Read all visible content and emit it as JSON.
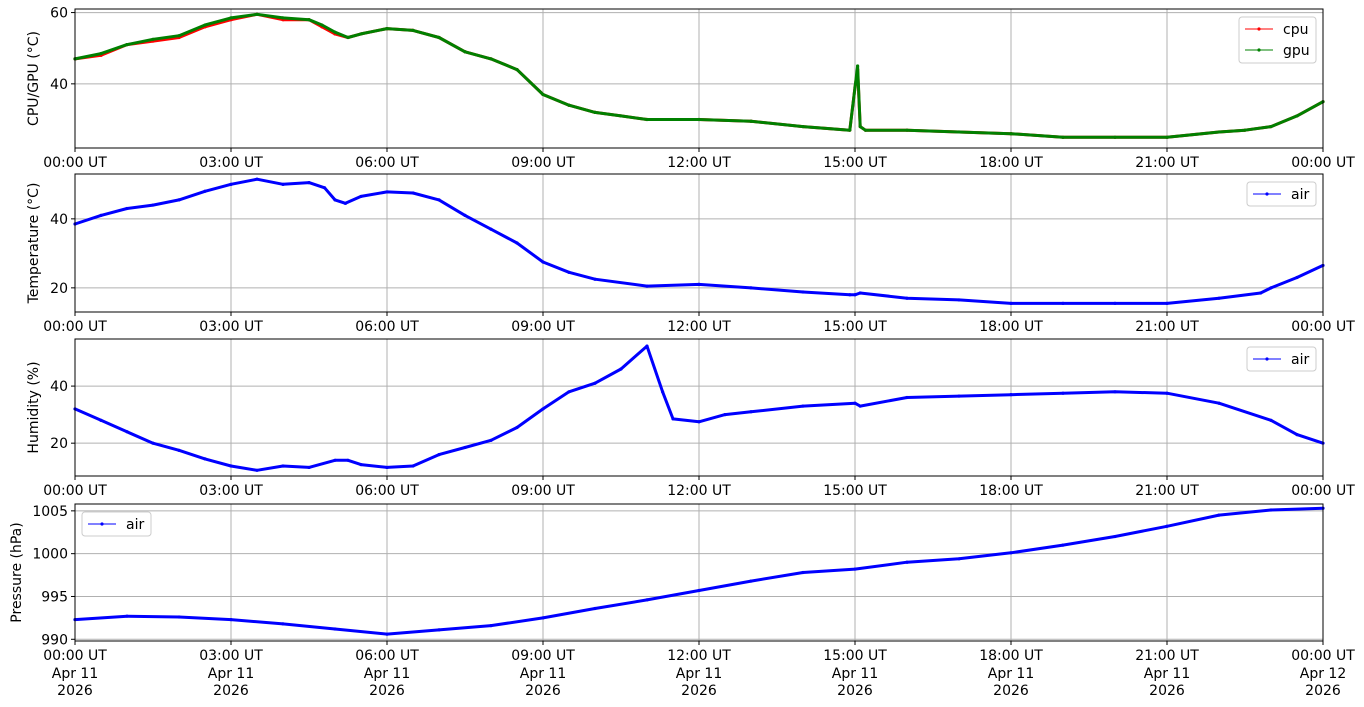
{
  "colors": {
    "cpu": "#ff0000",
    "gpu": "#008000",
    "air": "#0000ff",
    "grid": "#b0b0b0"
  },
  "x_ticks": [
    "00:00 UT",
    "03:00 UT",
    "06:00 UT",
    "09:00 UT",
    "12:00 UT",
    "15:00 UT",
    "18:00 UT",
    "21:00 UT",
    "00:00 UT"
  ],
  "x_tick_dates": [
    "Apr 11",
    "Apr 11",
    "Apr 11",
    "Apr 11",
    "Apr 11",
    "Apr 11",
    "Apr 11",
    "Apr 11",
    "Apr 12"
  ],
  "x_tick_years": [
    "2026",
    "2026",
    "2026",
    "2026",
    "2026",
    "2026",
    "2026",
    "2026",
    "2026"
  ],
  "chart_data": [
    {
      "type": "line",
      "xlabel": "",
      "ylabel": "CPU/GPU (°C)",
      "xlim": [
        "2026-04-11 00:00",
        "2026-04-12 00:00"
      ],
      "ylim": [
        22,
        61
      ],
      "yticks": [
        40,
        60
      ],
      "grid": true,
      "legend": "upper right",
      "series": [
        {
          "name": "cpu",
          "x_hours": [
            0,
            0.5,
            1,
            1.5,
            2,
            2.5,
            3,
            3.5,
            4,
            4.5,
            4.75,
            5,
            5.25,
            5.5,
            6,
            6.5,
            7,
            7.5,
            8,
            8.5,
            9,
            9.5,
            10,
            10.5,
            11,
            12,
            13,
            14,
            14.9,
            15,
            15.05,
            15.1,
            15.2,
            16,
            17,
            18,
            19,
            20,
            21,
            22,
            22.5,
            23,
            23.5,
            24
          ],
          "values": [
            47,
            48,
            51,
            52,
            53,
            56,
            58,
            59.5,
            58,
            58,
            56,
            54,
            53,
            54,
            55.5,
            55,
            53,
            49,
            47,
            44,
            37,
            34,
            32,
            31,
            30,
            30,
            29.5,
            28,
            27,
            39,
            44,
            28,
            27,
            27,
            26.5,
            26,
            25,
            25,
            25,
            26.5,
            27,
            28,
            31,
            35
          ]
        },
        {
          "name": "gpu",
          "x_hours": [
            0,
            0.5,
            1,
            1.5,
            2,
            2.5,
            3,
            3.5,
            4,
            4.5,
            4.75,
            5,
            5.25,
            5.5,
            6,
            6.5,
            7,
            7.5,
            8,
            8.5,
            9,
            9.5,
            10,
            10.5,
            11,
            12,
            13,
            14,
            14.9,
            15,
            15.05,
            15.1,
            15.2,
            16,
            17,
            18,
            19,
            20,
            21,
            22,
            22.5,
            23,
            23.5,
            24
          ],
          "values": [
            47,
            48.5,
            51,
            52.5,
            53.5,
            56.5,
            58.5,
            59.5,
            58.5,
            58,
            56.5,
            54.5,
            53,
            54,
            55.5,
            55,
            53,
            49,
            47,
            44,
            37,
            34,
            32,
            31,
            30,
            30,
            29.5,
            28,
            27,
            39,
            45,
            28,
            27,
            27,
            26.5,
            26,
            25,
            25,
            25,
            26.5,
            27,
            28,
            31,
            35
          ]
        }
      ]
    },
    {
      "type": "line",
      "xlabel": "",
      "ylabel": "Temperature (°C)",
      "xlim": [
        "2026-04-11 00:00",
        "2026-04-12 00:00"
      ],
      "ylim": [
        13,
        53
      ],
      "yticks": [
        20,
        40
      ],
      "grid": true,
      "legend": "upper right",
      "series": [
        {
          "name": "air",
          "x_hours": [
            0,
            0.5,
            1,
            1.5,
            2,
            2.5,
            3,
            3.5,
            4,
            4.5,
            4.8,
            5,
            5.2,
            5.5,
            6,
            6.5,
            7,
            7.5,
            8,
            8.5,
            9,
            9.5,
            10,
            11,
            12,
            13,
            14,
            14.9,
            15,
            15.1,
            16,
            17,
            18,
            19,
            20,
            21,
            22,
            22.8,
            23,
            23.5,
            24
          ],
          "values": [
            38.5,
            41,
            43,
            44,
            45.5,
            48,
            50,
            51.5,
            50,
            50.5,
            49,
            45.5,
            44.5,
            46.5,
            47.8,
            47.5,
            45.5,
            41,
            37,
            33,
            27.5,
            24.5,
            22.5,
            20.5,
            21,
            20,
            18.8,
            18,
            18,
            18.5,
            17,
            16.5,
            15.5,
            15.5,
            15.5,
            15.5,
            17,
            18.5,
            20,
            23,
            26.5
          ]
        }
      ]
    },
    {
      "type": "line",
      "xlabel": "",
      "ylabel": "Humidity (%)",
      "xlim": [
        "2026-04-11 00:00",
        "2026-04-12 00:00"
      ],
      "ylim": [
        8.5,
        56.5
      ],
      "yticks": [
        20,
        40
      ],
      "grid": true,
      "legend": "upper right",
      "series": [
        {
          "name": "air",
          "x_hours": [
            0,
            0.5,
            1,
            1.5,
            2,
            2.5,
            3,
            3.5,
            4,
            4.5,
            5,
            5.25,
            5.5,
            6,
            6.5,
            7,
            7.5,
            8,
            8.5,
            9,
            9.5,
            10,
            10.5,
            11,
            11.3,
            11.5,
            12,
            12.5,
            13,
            14,
            15,
            15.1,
            16,
            17,
            18,
            19,
            20,
            21,
            22,
            23,
            23.5,
            24
          ],
          "values": [
            32,
            28,
            24,
            20,
            17.5,
            14.5,
            12,
            10.5,
            12,
            11.5,
            14,
            14,
            12.5,
            11.5,
            12,
            16,
            18.5,
            21,
            25.5,
            32,
            38,
            41,
            46,
            54,
            38,
            28.5,
            27.5,
            30,
            31,
            33,
            34,
            33,
            36,
            36.5,
            37,
            37.5,
            38,
            37.5,
            34,
            28,
            23,
            20
          ]
        }
      ]
    },
    {
      "type": "line",
      "xlabel": "",
      "ylabel": "Pressure (hPa)",
      "xlim": [
        "2026-04-11 00:00",
        "2026-04-12 00:00"
      ],
      "ylim": [
        989.8,
        1005.8
      ],
      "yticks": [
        990,
        995,
        1000,
        1005
      ],
      "grid": true,
      "legend": "upper left",
      "series": [
        {
          "name": "air",
          "x_hours": [
            0,
            1,
            2,
            3,
            4,
            5,
            6,
            7,
            8,
            9,
            10,
            11,
            12,
            13,
            14,
            15,
            16,
            17,
            18,
            19,
            20,
            21,
            22,
            23,
            24
          ],
          "values": [
            992.3,
            992.7,
            992.6,
            992.3,
            991.8,
            991.2,
            990.6,
            991.1,
            991.6,
            992.5,
            993.6,
            994.6,
            995.7,
            996.8,
            997.8,
            998.2,
            999.0,
            999.4,
            1000.1,
            1001.0,
            1002.0,
            1003.2,
            1004.5,
            1005.1,
            1005.3
          ]
        }
      ]
    }
  ]
}
